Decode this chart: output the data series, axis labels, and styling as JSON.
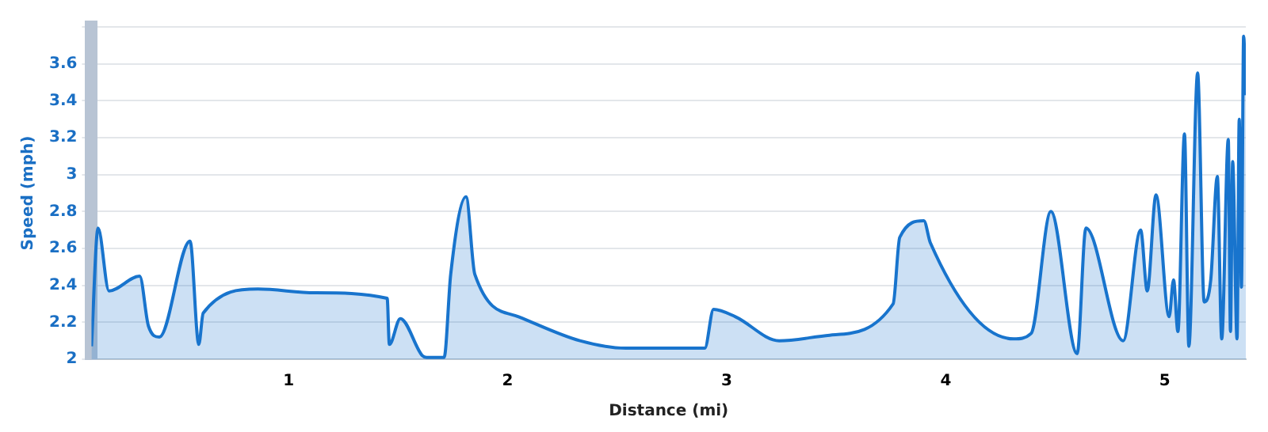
{
  "chart_data": {
    "type": "area",
    "xlabel": "Distance (mi)",
    "ylabel": "Speed (mph)",
    "xlim": [
      0.1,
      5.37
    ],
    "xticks": [
      1,
      2,
      3,
      4,
      5
    ],
    "ylim": [
      2,
      3.8
    ],
    "yticks": [
      2,
      2.2,
      2.4,
      2.6,
      2.8,
      3,
      3.2,
      3.4,
      3.6,
      {
        "value": 3.8,
        "label": null
      }
    ],
    "grid": "y",
    "legend": false,
    "marker": "none",
    "line_style": "solid",
    "series": [
      {
        "color": "#1874cd",
        "x": [
          0.1,
          0.13,
          0.18,
          0.32,
          0.36,
          0.41,
          0.55,
          0.59,
          0.61,
          0.86,
          1.12,
          1.45,
          1.46,
          1.51,
          1.61,
          1.63,
          1.71,
          1.74,
          1.81,
          1.85,
          2.05,
          2.33,
          2.54,
          2.9,
          2.94,
          3.04,
          3.24,
          3.47,
          3.76,
          3.79,
          3.9,
          3.93,
          4.31,
          4.39,
          4.48,
          4.6,
          4.64,
          4.81,
          4.89,
          4.92,
          4.96,
          5.02,
          5.04,
          5.06,
          5.09,
          5.11,
          5.15,
          5.18,
          5.21,
          5.24,
          5.26,
          5.29,
          5.3,
          5.31,
          5.33,
          5.34,
          5.35,
          5.36,
          5.37
        ],
        "values": [
          2.07,
          2.71,
          2.37,
          2.45,
          2.18,
          2.12,
          2.64,
          2.08,
          2.25,
          2.38,
          2.36,
          2.33,
          2.08,
          2.22,
          2.02,
          2.01,
          2.01,
          2.46,
          2.88,
          2.46,
          2.23,
          2.1,
          2.06,
          2.06,
          2.27,
          2.23,
          2.1,
          2.13,
          2.3,
          2.66,
          2.75,
          2.63,
          2.11,
          2.14,
          2.8,
          2.03,
          2.71,
          2.1,
          2.7,
          2.37,
          2.89,
          2.23,
          2.43,
          2.15,
          3.22,
          2.07,
          3.55,
          2.31,
          2.43,
          2.99,
          2.11,
          3.19,
          2.15,
          3.07,
          2.11,
          3.3,
          2.39,
          3.75,
          3.43
        ]
      }
    ]
  }
}
